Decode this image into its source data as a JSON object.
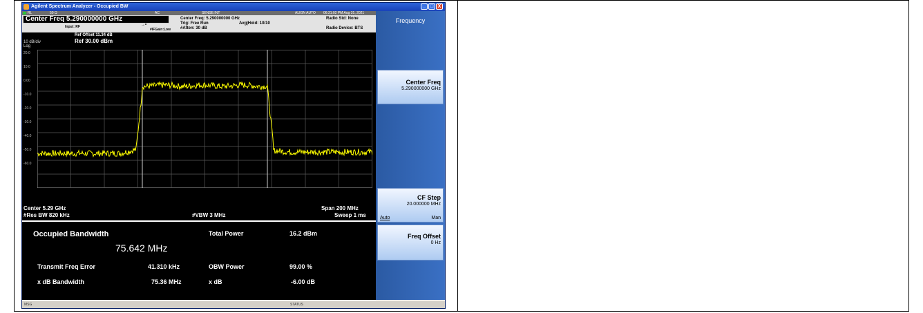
{
  "window": {
    "title": "Agilent Spectrum Analyzer - Occupied BW",
    "controls": [
      "_",
      "□",
      "X"
    ]
  },
  "status_bar": {
    "rl": "RL",
    "impedance": "50 Ω",
    "coupling": "AC",
    "sense": "SENSE:INT",
    "align": "ALIGN AUTO",
    "datetime": "06:21:02 PM Aug 31, 2021"
  },
  "header": {
    "center_freq": "Center Freq  5.290000000 GHz",
    "input": "Input: RF",
    "ifgain": "#IFGain:Low",
    "cf_detail": "Center Freq: 5.290000000 GHz",
    "trig": "Trig: Free Run",
    "avg_hold": "Avg|Hold: 10/10",
    "atten": "#Atten: 30 dB",
    "radio_std": "Radio Std: None",
    "radio_device": "Radio Device: BTS"
  },
  "trace": {
    "ref_offset": "Ref Offset 11.34 dB",
    "ref_level": "Ref 30.00 dBm",
    "scale": "10 dB/div",
    "log": "Log",
    "y_labels": [
      "20.0",
      "10.0",
      "0.00",
      "-10.0",
      "-20.0",
      "-30.0",
      "-40.0",
      "-50.0",
      "-60.0"
    ],
    "trace_color": "#ffff00",
    "center": "Center  5.29 GHz",
    "res_bw": "#Res BW  820 kHz",
    "vbw": "#VBW  3 MHz",
    "span": "Span 200 MHz",
    "sweep": "Sweep  1 ms"
  },
  "results": {
    "obw_label": "Occupied Bandwidth",
    "obw_value": "75.642 MHz",
    "total_power_label": "Total Power",
    "total_power_value": "16.2 dBm",
    "tfe_label": "Transmit Freq Error",
    "tfe_value": "41.310 kHz",
    "obw_power_label": "OBW Power",
    "obw_power_value": "99.00 %",
    "xdb_bw_label": "x dB Bandwidth",
    "xdb_bw_value": "75.36 MHz",
    "xdb_label": "x dB",
    "xdb_value": "-6.00 dB"
  },
  "softkeys": {
    "menu_title": "Frequency",
    "center_freq_label": "Center Freq",
    "center_freq_value": "5.290000000 GHz",
    "cf_step_label": "CF Step",
    "cf_step_value": "20.000000 MHz",
    "cf_step_auto": "Auto",
    "cf_step_man": "Man",
    "freq_offset_label": "Freq Offset",
    "freq_offset_value": "0 Hz"
  },
  "msg_bar": {
    "msg": "MSG",
    "status": "STATUS"
  }
}
